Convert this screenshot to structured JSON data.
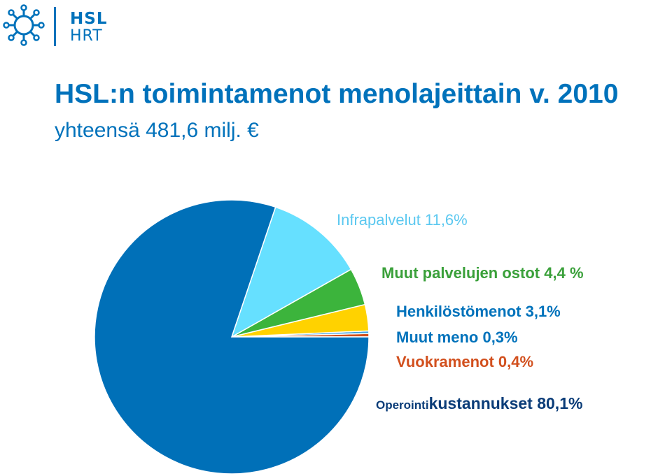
{
  "logo": {
    "line1": "HSL",
    "line2": "HRT",
    "color": "#0072bb"
  },
  "heading": {
    "title": "HSL:n toimintamenot menolajeittain v. 2010",
    "subtitle": "yhteensä 481,6 milj. €"
  },
  "chart_data": {
    "type": "pie",
    "start_angle_deg": 0,
    "direction": "counterclockwise",
    "slices": [
      {
        "name_prefix": "Operointi",
        "name": "kustannukset",
        "value_label": "80,1%",
        "value": 80.1,
        "color": "#0070b8"
      },
      {
        "name": "Infrapalvelut",
        "value_label": "11,6%",
        "value": 11.6,
        "color": "#66e0ff"
      },
      {
        "name": "Muut palvelujen ostot",
        "value_label": "4,4 %",
        "value": 4.4,
        "color": "#3cb43c"
      },
      {
        "name": "Henkilöstömenot",
        "value_label": "3,1%",
        "value": 3.1,
        "color": "#ffd200"
      },
      {
        "name": "Muut meno",
        "value_label": "0,3%",
        "value": 0.3,
        "color": "#3aa0e0"
      },
      {
        "name": "Vuokramenot",
        "value_label": "0,4%",
        "value": 0.4,
        "color": "#d2501e"
      }
    ],
    "label_colors": {
      "infra": "#5bc8f0",
      "muut": "#3aa03a",
      "henk": "#0072bb",
      "meno": "#0072bb",
      "vuokra": "#d2501e",
      "oper": "#0a3c78"
    }
  }
}
